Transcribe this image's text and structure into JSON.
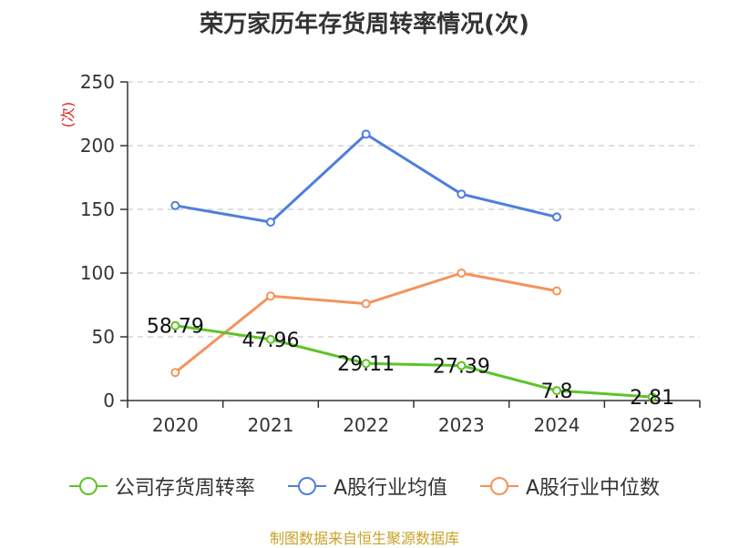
{
  "chart_data": {
    "type": "line",
    "title": "荣万家历年存货周转率情况(次)",
    "ylabel": "(次)",
    "categories": [
      "2020",
      "2021",
      "2022",
      "2023",
      "2024",
      "2025"
    ],
    "yticks": [
      "0",
      "50",
      "100",
      "150",
      "200",
      "250"
    ],
    "ylim": [
      0,
      250
    ],
    "grid": true,
    "legend_position": "bottom",
    "series": [
      {
        "name": "公司存货周转率",
        "color": "#5dc428",
        "values": [
          58.79,
          47.96,
          29.11,
          27.39,
          7.8,
          2.81
        ],
        "labels": [
          "58.79",
          "47.96",
          "29.11",
          "27.39",
          "7.8",
          "2.81"
        ]
      },
      {
        "name": "A股行业均值",
        "color": "#4e7fdc",
        "values": [
          153,
          140,
          209,
          162,
          144,
          null
        ]
      },
      {
        "name": "A股行业中位数",
        "color": "#f4935e",
        "values": [
          22,
          82,
          76,
          100,
          86,
          null
        ]
      }
    ]
  },
  "source": "制图数据来自恒生聚源数据库",
  "colors": {
    "axis": "#333333",
    "grid": "#cccccc",
    "ylabel": "#e02020",
    "source": "#c9a227"
  }
}
